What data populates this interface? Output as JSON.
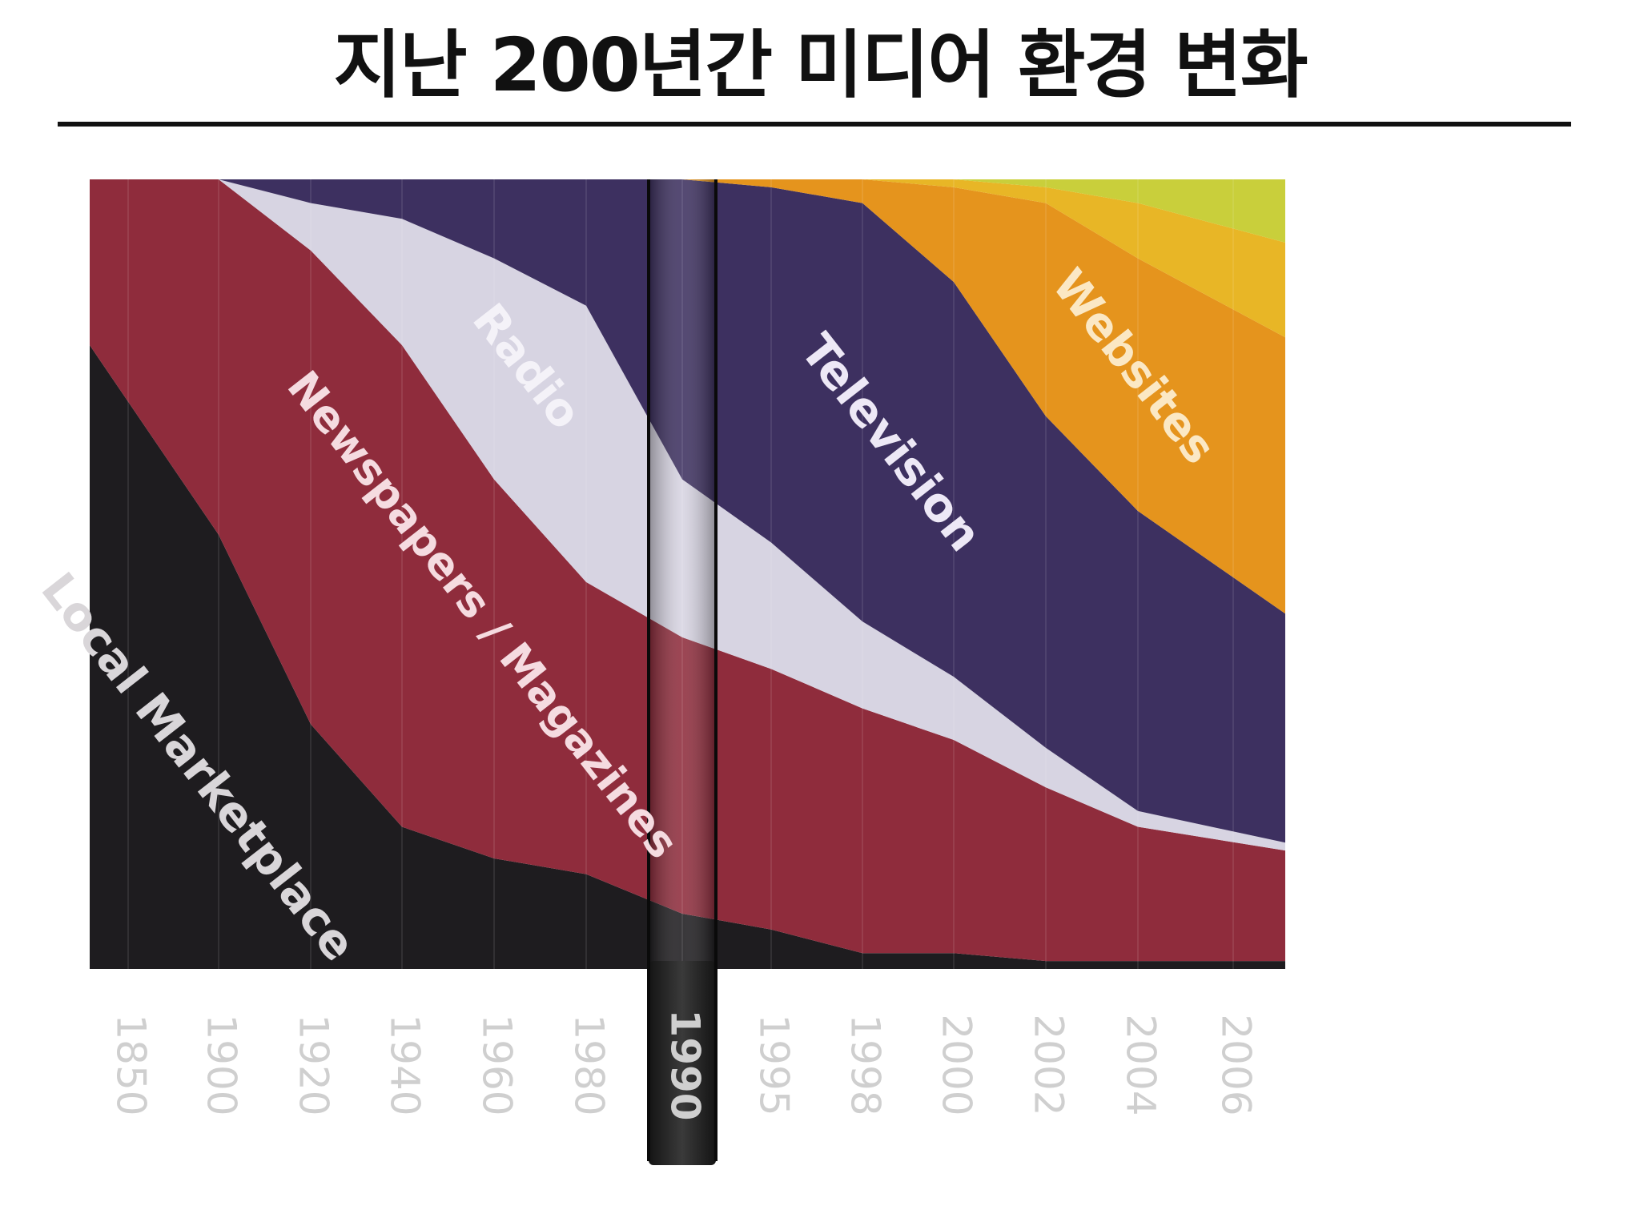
{
  "title": "지난 200년간 미디어 환경 변화",
  "chart_data": {
    "type": "area",
    "stacked": true,
    "normalized": true,
    "x": [
      "1850",
      "1900",
      "1920",
      "1940",
      "1960",
      "1980",
      "1990",
      "1995",
      "1998",
      "2000",
      "2002",
      "2004",
      "2006"
    ],
    "highlighted_x": "1990",
    "series": [
      {
        "name": "Local Marketplace",
        "color": "#1e1c1f",
        "values": [
          0.79,
          0.55,
          0.31,
          0.18,
          0.14,
          0.12,
          0.07,
          0.05,
          0.02,
          0.02,
          0.01,
          0.01,
          0.01
        ]
      },
      {
        "name": "Newspapers / Magazines",
        "color": "#8f2c3c",
        "values": [
          0.21,
          0.45,
          0.6,
          0.61,
          0.48,
          0.37,
          0.35,
          0.33,
          0.31,
          0.27,
          0.22,
          0.17,
          0.14
        ]
      },
      {
        "name": "Radio",
        "color": "#d7d4e2",
        "values": [
          0.0,
          0.0,
          0.06,
          0.16,
          0.28,
          0.35,
          0.2,
          0.16,
          0.11,
          0.08,
          0.05,
          0.02,
          0.01
        ]
      },
      {
        "name": "Television",
        "color": "#3d3060",
        "values": [
          0.0,
          0.0,
          0.03,
          0.05,
          0.1,
          0.16,
          0.38,
          0.45,
          0.53,
          0.5,
          0.42,
          0.38,
          0.29
        ]
      },
      {
        "name": "Websites",
        "color": "#e5941d",
        "values": [
          0.0,
          0.0,
          0.0,
          0.0,
          0.0,
          0.0,
          0.0,
          0.01,
          0.03,
          0.12,
          0.27,
          0.32,
          0.35
        ]
      },
      {
        "name": "",
        "color": "#e8b626",
        "values": [
          0.0,
          0.0,
          0.0,
          0.0,
          0.0,
          0.0,
          0.0,
          0.0,
          0.0,
          0.01,
          0.02,
          0.07,
          0.12
        ]
      },
      {
        "name": "",
        "color": "#c9cf3b",
        "values": [
          0.0,
          0.0,
          0.0,
          0.0,
          0.0,
          0.0,
          0.0,
          0.0,
          0.0,
          0.0,
          0.01,
          0.03,
          0.08
        ]
      }
    ],
    "ylim": [
      0,
      1
    ],
    "legend": "none",
    "grid": true
  }
}
